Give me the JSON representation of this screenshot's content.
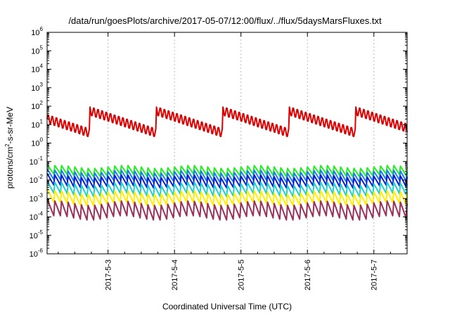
{
  "title": "/data/run/goesPlots/archive/2017-05-07/12:00/flux/../flux/5daysMarsFluxes.txt",
  "chart_data": {
    "type": "line",
    "title": "/data/run/goesPlots/archive/2017-05-07/12:00/flux/../flux/5daysMarsFluxes.txt",
    "xlabel": "Coordinated Universal Time (UTC)",
    "ylabel": "protons/cm²-s-sr-MeV",
    "ylabel_base": "protons/cm",
    "ylabel_sup": "2",
    "ylabel_tail": "-s-sr-MeV",
    "y_scale": "log",
    "ylim_exp": [
      -6,
      6
    ],
    "y_tick_exponents": [
      -6,
      -5,
      -4,
      -3,
      -2,
      -1,
      0,
      1,
      2,
      3,
      4,
      5,
      6
    ],
    "xlim": [
      2.0833,
      7.5
    ],
    "x_ticks": [
      {
        "x": 3,
        "label": "2017-5-3"
      },
      {
        "x": 4,
        "label": "2017-5-4"
      },
      {
        "x": 5,
        "label": "2017-5-5"
      },
      {
        "x": 6,
        "label": "2017-5-6"
      },
      {
        "x": 7,
        "label": "2017-5-7"
      }
    ],
    "grid": true,
    "series": [
      {
        "color": "#dd0000",
        "base": 1.2,
        "amp": 0.6,
        "period": 0.0625,
        "drift": 0.8,
        "dphase": 0.0,
        "dperiod": 1.0
      },
      {
        "color": "#22ee22",
        "base": -1.75,
        "amp": 0.55,
        "period": 0.1,
        "drift": 0.08,
        "dphase": 0.0,
        "dperiod": 1.0
      },
      {
        "color": "#1c7ff0",
        "base": -2.05,
        "amp": 0.6,
        "period": 0.1,
        "drift": 0.08,
        "dphase": 0.02,
        "dperiod": 1.0
      },
      {
        "color": "#0a1fd0",
        "base": -2.35,
        "amp": 0.65,
        "period": 0.1,
        "drift": 0.08,
        "dphase": 0.03,
        "dperiod": 1.0
      },
      {
        "color": "#1fd0d0",
        "base": -2.8,
        "amp": 0.7,
        "period": 0.1,
        "drift": 0.1,
        "dphase": 0.01,
        "dperiod": 1.0
      },
      {
        "color": "#ffee00",
        "base": -3.3,
        "amp": 0.75,
        "period": 0.1,
        "drift": 0.1,
        "dphase": 0.04,
        "dperiod": 1.0
      },
      {
        "color": "#983058",
        "base": -4.05,
        "amp": 0.95,
        "period": 0.1,
        "drift": 0.12,
        "dphase": 0.02,
        "dperiod": 1.0
      }
    ]
  }
}
